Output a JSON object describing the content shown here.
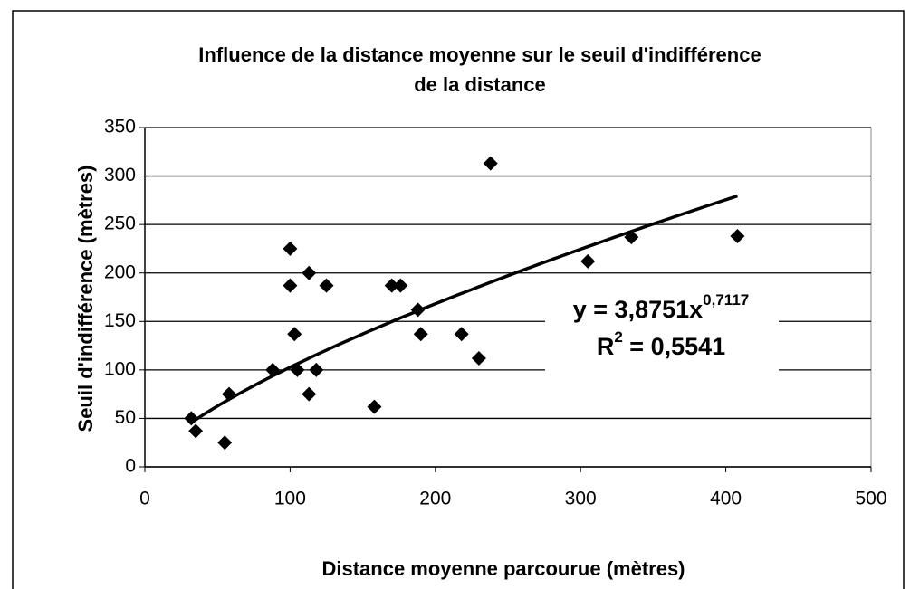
{
  "chart_data": {
    "type": "scatter",
    "title": [
      "Influence de la distance moyenne sur le seuil d'indifférence",
      "de la distance"
    ],
    "x_label": "Distance moyenne parcourue (mètres)",
    "y_label": "Seuil d'indifférence (mètres)",
    "x": [
      32,
      35,
      55,
      58,
      88,
      100,
      100,
      103,
      105,
      113,
      113,
      118,
      125,
      158,
      170,
      176,
      188,
      190,
      218,
      230,
      238,
      305,
      335,
      408
    ],
    "series": [
      {
        "color": "#000000",
        "values": [
          50,
          37,
          25,
          75,
          100,
          225,
          187,
          137,
          100,
          200,
          75,
          100,
          187,
          62,
          187,
          187,
          162,
          137,
          137,
          112,
          313,
          212,
          237,
          238
        ]
      }
    ],
    "xlim": [
      0,
      500
    ],
    "xticks": [
      0,
      100,
      200,
      300,
      400,
      500
    ],
    "ylim": [
      0,
      350
    ],
    "yticks": [
      0,
      50,
      100,
      150,
      200,
      250,
      300,
      350
    ],
    "grid": true,
    "trendline": {
      "kind": "power",
      "equation_prefix": "y = ",
      "coefficient": {
        "value": 3.8751,
        "label": "3,8751"
      },
      "variable": "x",
      "exponent": {
        "value": 0.7117,
        "label": "0,7117"
      },
      "r2_symbol": "R",
      "r2_power": "2",
      "r2_equals": " = ",
      "r2": {
        "value": 0.5541,
        "label": "0,5541"
      }
    }
  }
}
